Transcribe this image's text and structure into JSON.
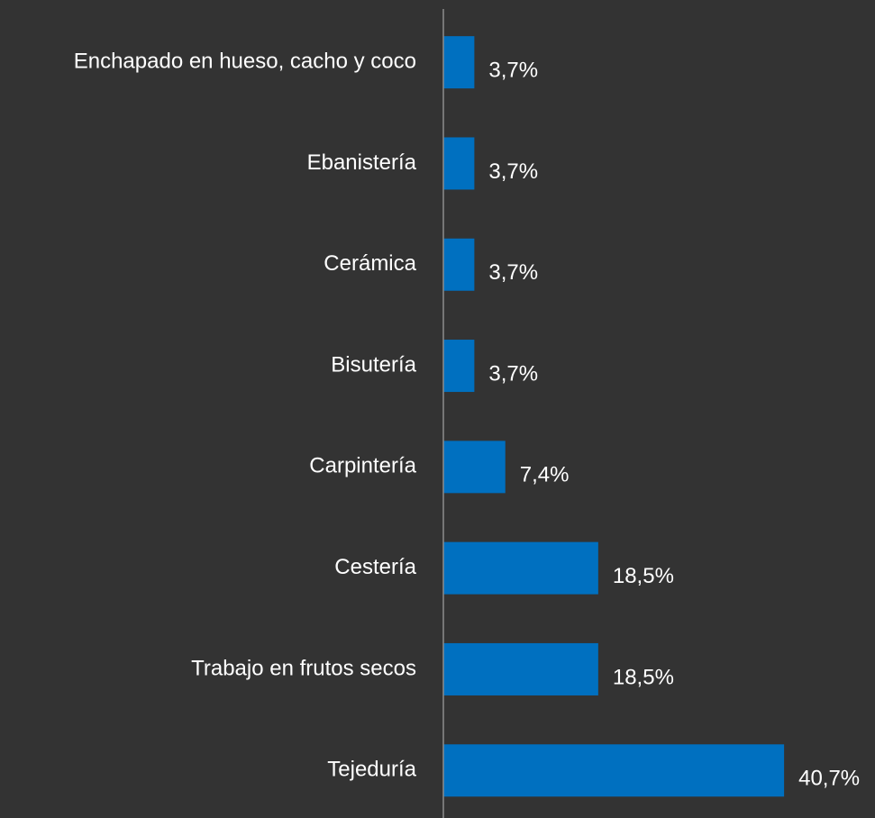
{
  "chart_data": {
    "type": "bar",
    "orientation": "horizontal",
    "categories": [
      "Enchapado en hueso, cacho y coco",
      "Ebanistería",
      "Cerámica",
      "Bisutería",
      "Carpintería",
      "Cestería",
      "Trabajo en frutos secos",
      "Tejeduría"
    ],
    "values": [
      3.7,
      3.7,
      3.7,
      3.7,
      7.4,
      18.5,
      18.5,
      40.7
    ],
    "value_labels": [
      "3,7%",
      "3,7%",
      "3,7%",
      "3,7%",
      "7,4%",
      "18,5%",
      "18,5%",
      "40,7%"
    ],
    "color": "#0070c0"
  }
}
